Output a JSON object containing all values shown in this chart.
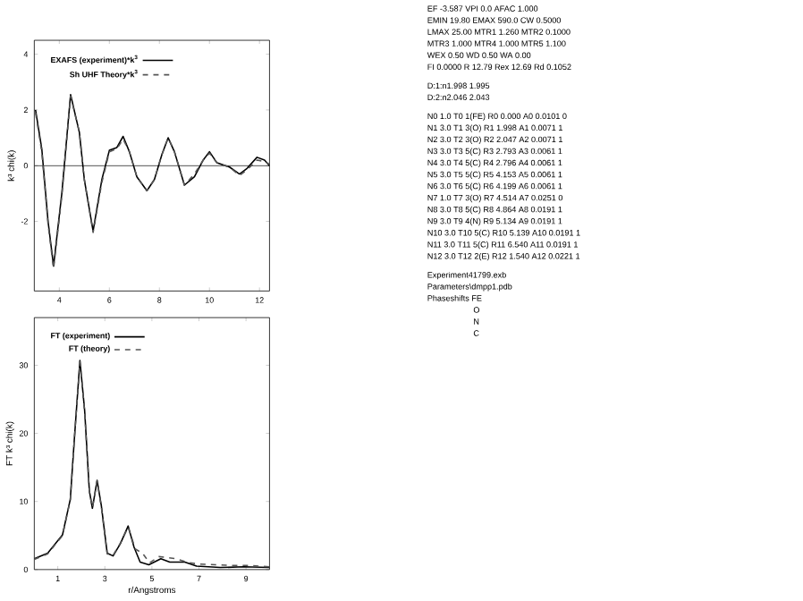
{
  "chart_data": [
    {
      "type": "line",
      "ylabel": "k³ chi(k)",
      "xlim": [
        3,
        12.4
      ],
      "ylim": [
        -4.5,
        4.5
      ],
      "xticks": [
        4,
        6,
        8,
        10,
        12
      ],
      "yticks": [
        -2,
        0,
        2,
        4
      ],
      "legend": "top left",
      "ref_lines": [
        {
          "axis": "y",
          "value": 0,
          "color": "#000000"
        }
      ],
      "series": [
        {
          "name": "EXAFS (experiment)*k$^{3}$",
          "color": "#000000",
          "line_style": "solid",
          "x": [
            3.05,
            3.3,
            3.55,
            3.77,
            4.1,
            4.45,
            4.8,
            5.0,
            5.35,
            5.7,
            6.0,
            6.3,
            6.55,
            6.8,
            7.1,
            7.5,
            7.8,
            8.1,
            8.35,
            8.6,
            9.0,
            9.4,
            9.75,
            10.0,
            10.3,
            10.8,
            11.2,
            11.5,
            11.9,
            12.2,
            12.4
          ],
          "values": [
            2.0,
            0.6,
            -2.0,
            -3.6,
            -1.0,
            2.55,
            1.2,
            -0.5,
            -2.35,
            -0.5,
            0.55,
            0.65,
            1.05,
            0.5,
            -0.4,
            -0.9,
            -0.5,
            0.4,
            1.0,
            0.5,
            -0.7,
            -0.4,
            0.2,
            0.5,
            0.1,
            -0.05,
            -0.3,
            -0.1,
            0.3,
            0.2,
            0.0
          ]
        },
        {
          "name": "Sh UHF Theory*k$^{3}$",
          "color": "#555555",
          "line_style": "dashed",
          "x": [
            3.05,
            3.3,
            3.55,
            3.77,
            4.1,
            4.45,
            4.8,
            5.0,
            5.35,
            5.7,
            6.0,
            6.3,
            6.55,
            6.8,
            7.1,
            7.5,
            7.8,
            8.1,
            8.35,
            8.6,
            9.0,
            9.4,
            9.75,
            10.0,
            10.3,
            10.8,
            11.2,
            11.5,
            11.9,
            12.2,
            12.4
          ],
          "values": [
            1.9,
            0.5,
            -2.1,
            -3.7,
            -1.1,
            2.5,
            1.2,
            -0.5,
            -2.4,
            -0.6,
            0.5,
            0.6,
            0.95,
            0.5,
            -0.4,
            -0.9,
            -0.5,
            0.4,
            1.0,
            0.5,
            -0.7,
            -0.3,
            0.2,
            0.45,
            0.1,
            -0.05,
            -0.35,
            -0.15,
            0.2,
            0.15,
            0.05
          ]
        }
      ],
      "annotations": [
        "EF -3.587 VPI 0.0 AFAC 1.000",
        "EMIN 19.80 EMAX 590.0 CW 0.5000",
        "LMAX 25.00 MTR1 1.260 MTR2 0.1000",
        "MTR3 1.000 MTR4 1.000 MTR5 1.100",
        "WEX 0.50 WD 0.50 WA 0.00",
        "FI 0.0000 R 12.79 Rex 12.69 Rd 0.1052",
        "D:1:n1.998 1.995",
        "D:2:n2.046 2.043",
        "N0 1.0 T0 1(FE) R0 0.000 A0 0.0101 0",
        "N1 3.0 T1 3(O) R1 1.998 A1 0.0071 1",
        "N2 3.0 T2 3(O) R2 2.047 A2 0.0071 1",
        "N3 3.0 T3 5(C) R3 2.793 A3 0.0061 1",
        "N4 3.0 T4 5(C) R4 2.796 A4 0.0061 1",
        "N5 3.0 T5 5(C) R5 4.153 A5 0.0061 1",
        "N6 3.0 T6 5(C) R6 4.199 A6 0.0061 1",
        "N7 1.0 T7 3(O) R7 4.514 A7 0.0251 0",
        "N8 3.0 T8 5(C) R8 4.864 A8 0.0191 1",
        "N9 3.0 T9 4(N) R9 5.134 A9 0.0191 1",
        "N10 3.0 T10 5(C) R10 5.139 A10 0.0191 1",
        "N11 3.0 T11 5(C) R11 6.540 A11 0.0191 1",
        "N12 3.0 T12 2(E) R12 1.540 A12 0.0221 1",
        "Experiment41799.exb",
        "Parameters\\dmpp1.pdb",
        "Phaseshifts FE",
        "O",
        "N",
        "C"
      ]
    },
    {
      "type": "line",
      "xlabel": "r/Angstroms",
      "ylabel": "FT k³ chi(k)",
      "xlim": [
        0,
        10
      ],
      "ylim": [
        0,
        37
      ],
      "xticks": [
        1,
        3,
        5,
        7,
        9
      ],
      "yticks": [
        0,
        10,
        20,
        30
      ],
      "legend": "top left",
      "series": [
        {
          "name": "FT (experiment)",
          "color": "#000000",
          "line_style": "solid",
          "x": [
            0.0,
            0.57,
            1.2,
            1.53,
            1.7,
            1.94,
            2.14,
            2.34,
            2.47,
            2.67,
            2.85,
            3.1,
            3.35,
            3.66,
            3.99,
            4.24,
            4.5,
            4.87,
            5.38,
            5.76,
            6.4,
            6.9,
            7.9,
            8.9,
            10.0
          ],
          "values": [
            1.6,
            2.4,
            5.1,
            10.3,
            19,
            30.7,
            23.4,
            11.6,
            9.0,
            13.1,
            9.4,
            2.4,
            2.0,
            3.8,
            6.4,
            3.3,
            1.1,
            0.7,
            1.6,
            1.1,
            1.1,
            0.5,
            0.3,
            0.4,
            0.3
          ]
        },
        {
          "name": "FT (theory)",
          "color": "#555555",
          "line_style": "dashed",
          "x": [
            0.0,
            0.57,
            1.2,
            1.53,
            1.7,
            1.94,
            2.14,
            2.34,
            2.47,
            2.67,
            2.85,
            3.1,
            3.35,
            3.66,
            3.99,
            4.3,
            4.6,
            4.9,
            5.3,
            6.0,
            6.6,
            7.0,
            8.5,
            9.2,
            10.0
          ],
          "values": [
            1.5,
            2.3,
            5.0,
            10.2,
            19,
            30.5,
            23.2,
            11.5,
            9.1,
            13.0,
            9.2,
            2.3,
            2.1,
            3.9,
            6.2,
            3.0,
            2.4,
            1.0,
            1.9,
            1.6,
            1.0,
            0.8,
            0.6,
            0.6,
            0.4
          ]
        }
      ]
    }
  ]
}
